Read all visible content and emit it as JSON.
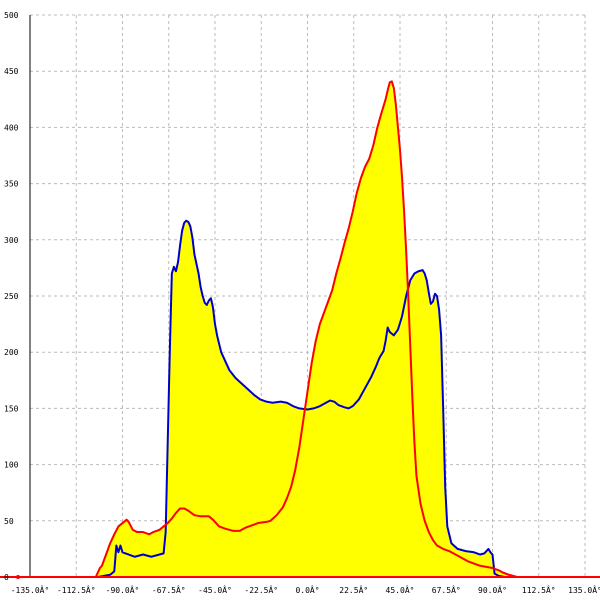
{
  "chart_data": {
    "type": "area",
    "title": "",
    "xlabel": "",
    "ylabel": "",
    "xlim": [
      -135,
      135
    ],
    "ylim": [
      0,
      500
    ],
    "grid": true,
    "x_ticks": [
      -135,
      -112.5,
      -90,
      -67.5,
      -45,
      -22.5,
      0,
      22.5,
      45,
      67.5,
      90,
      112.5,
      135
    ],
    "x_tick_labels": [
      "-135.0Â°",
      "-112.5Â°",
      "-90.0Â°",
      "-67.5Â°",
      "-45.0Â°",
      "-22.5Â°",
      "0.0Â°",
      "22.5Â°",
      "45.0Â°",
      "67.5Â°",
      "90.0Â°",
      "112.5Â°",
      "135.0Â°"
    ],
    "y_ticks": [
      0,
      50,
      100,
      150,
      200,
      250,
      300,
      350,
      400,
      450,
      500
    ],
    "y_tick_labels": [
      "0",
      "50",
      "100",
      "150",
      "200",
      "250",
      "300",
      "350",
      "400",
      "450",
      "500"
    ],
    "series": [
      {
        "color": "#0000cc",
        "points": [
          [
            -102,
            0
          ],
          [
            -96,
            2
          ],
          [
            -94,
            5
          ],
          [
            -93,
            28
          ],
          [
            -92,
            22
          ],
          [
            -91,
            28
          ],
          [
            -90,
            22
          ],
          [
            -87,
            20
          ],
          [
            -84,
            18
          ],
          [
            -80,
            20
          ],
          [
            -76,
            18
          ],
          [
            -72,
            20
          ],
          [
            -70,
            21
          ],
          [
            -69,
            40
          ],
          [
            -68,
            120
          ],
          [
            -67,
            200
          ],
          [
            -66,
            270
          ],
          [
            -65,
            276
          ],
          [
            -64,
            272
          ],
          [
            -63,
            280
          ],
          [
            -62,
            295
          ],
          [
            -61,
            308
          ],
          [
            -60,
            315
          ],
          [
            -59,
            317
          ],
          [
            -58,
            316
          ],
          [
            -57,
            312
          ],
          [
            -56,
            302
          ],
          [
            -55,
            287
          ],
          [
            -53,
            270
          ],
          [
            -52,
            258
          ],
          [
            -51,
            250
          ],
          [
            -50,
            244
          ],
          [
            -49,
            242
          ],
          [
            -48,
            246
          ],
          [
            -47,
            248
          ],
          [
            -46,
            240
          ],
          [
            -45,
            225
          ],
          [
            -44,
            215
          ],
          [
            -42,
            200
          ],
          [
            -40,
            192
          ],
          [
            -38,
            184
          ],
          [
            -35,
            177
          ],
          [
            -32,
            172
          ],
          [
            -29,
            167
          ],
          [
            -26,
            162
          ],
          [
            -23,
            158
          ],
          [
            -20,
            156
          ],
          [
            -17,
            155
          ],
          [
            -13,
            156
          ],
          [
            -10,
            155
          ],
          [
            -7,
            152
          ],
          [
            -4,
            150
          ],
          [
            0,
            149
          ],
          [
            3,
            150
          ],
          [
            6,
            152
          ],
          [
            9,
            155
          ],
          [
            11,
            157
          ],
          [
            13,
            156
          ],
          [
            15,
            153
          ],
          [
            18,
            151
          ],
          [
            20,
            150
          ],
          [
            22,
            152
          ],
          [
            25,
            158
          ],
          [
            28,
            168
          ],
          [
            31,
            178
          ],
          [
            33,
            186
          ],
          [
            35,
            195
          ],
          [
            37,
            201
          ],
          [
            38,
            210
          ],
          [
            39,
            222
          ],
          [
            40,
            218
          ],
          [
            42,
            215
          ],
          [
            44,
            220
          ],
          [
            46,
            232
          ],
          [
            48,
            250
          ],
          [
            50,
            264
          ],
          [
            52,
            270
          ],
          [
            54,
            272
          ],
          [
            56,
            273
          ],
          [
            57,
            270
          ],
          [
            58,
            264
          ],
          [
            59,
            253
          ],
          [
            60,
            243
          ],
          [
            61,
            245
          ],
          [
            62,
            252
          ],
          [
            63,
            250
          ],
          [
            64,
            238
          ],
          [
            65,
            215
          ],
          [
            66,
            150
          ],
          [
            67,
            80
          ],
          [
            68,
            45
          ],
          [
            70,
            30
          ],
          [
            73,
            25
          ],
          [
            77,
            23
          ],
          [
            81,
            22
          ],
          [
            84,
            20
          ],
          [
            86,
            21
          ],
          [
            88,
            25
          ],
          [
            89,
            22
          ],
          [
            90,
            20
          ],
          [
            91,
            3
          ],
          [
            93,
            1
          ],
          [
            96,
            0
          ]
        ]
      },
      {
        "color": "#ff0000",
        "points": [
          [
            -103,
            0
          ],
          [
            -101,
            8
          ],
          [
            -100,
            10
          ],
          [
            -98,
            20
          ],
          [
            -96,
            30
          ],
          [
            -94,
            38
          ],
          [
            -92,
            45
          ],
          [
            -90,
            48
          ],
          [
            -88,
            51
          ],
          [
            -87,
            49
          ],
          [
            -85,
            42
          ],
          [
            -83,
            40
          ],
          [
            -80,
            40
          ],
          [
            -77,
            38
          ],
          [
            -75,
            40
          ],
          [
            -72,
            42
          ],
          [
            -70,
            45
          ],
          [
            -68,
            48
          ],
          [
            -66,
            52
          ],
          [
            -64,
            57
          ],
          [
            -62,
            61
          ],
          [
            -60,
            61
          ],
          [
            -58,
            59
          ],
          [
            -55,
            55
          ],
          [
            -52,
            54
          ],
          [
            -50,
            54
          ],
          [
            -48,
            54
          ],
          [
            -46,
            51
          ],
          [
            -43,
            45
          ],
          [
            -40,
            43
          ],
          [
            -36,
            41
          ],
          [
            -33,
            41
          ],
          [
            -30,
            44
          ],
          [
            -27,
            46
          ],
          [
            -24,
            48
          ],
          [
            -20,
            49
          ],
          [
            -18,
            50
          ],
          [
            -15,
            55
          ],
          [
            -12,
            62
          ],
          [
            -10,
            70
          ],
          [
            -8,
            80
          ],
          [
            -6,
            95
          ],
          [
            -4,
            115
          ],
          [
            -2,
            140
          ],
          [
            0,
            165
          ],
          [
            2,
            190
          ],
          [
            4,
            210
          ],
          [
            6,
            225
          ],
          [
            8,
            235
          ],
          [
            10,
            245
          ],
          [
            12,
            255
          ],
          [
            14,
            270
          ],
          [
            16,
            283
          ],
          [
            18,
            297
          ],
          [
            20,
            310
          ],
          [
            22,
            325
          ],
          [
            24,
            342
          ],
          [
            26,
            355
          ],
          [
            28,
            365
          ],
          [
            30,
            372
          ],
          [
            32,
            384
          ],
          [
            34,
            400
          ],
          [
            36,
            413
          ],
          [
            38,
            425
          ],
          [
            39,
            433
          ],
          [
            40,
            440
          ],
          [
            41,
            441
          ],
          [
            42,
            435
          ],
          [
            43,
            420
          ],
          [
            44,
            400
          ],
          [
            45,
            380
          ],
          [
            46,
            355
          ],
          [
            47,
            325
          ],
          [
            48,
            290
          ],
          [
            49,
            250
          ],
          [
            50,
            205
          ],
          [
            51,
            160
          ],
          [
            52,
            120
          ],
          [
            53,
            90
          ],
          [
            55,
            65
          ],
          [
            57,
            50
          ],
          [
            59,
            40
          ],
          [
            61,
            33
          ],
          [
            63,
            28
          ],
          [
            66,
            25
          ],
          [
            69,
            23
          ],
          [
            72,
            20
          ],
          [
            75,
            17
          ],
          [
            78,
            14
          ],
          [
            81,
            12
          ],
          [
            84,
            10
          ],
          [
            87,
            9
          ],
          [
            90,
            8
          ],
          [
            93,
            6
          ],
          [
            95,
            4
          ],
          [
            98,
            2
          ],
          [
            100,
            1
          ],
          [
            102,
            0
          ]
        ]
      }
    ]
  }
}
